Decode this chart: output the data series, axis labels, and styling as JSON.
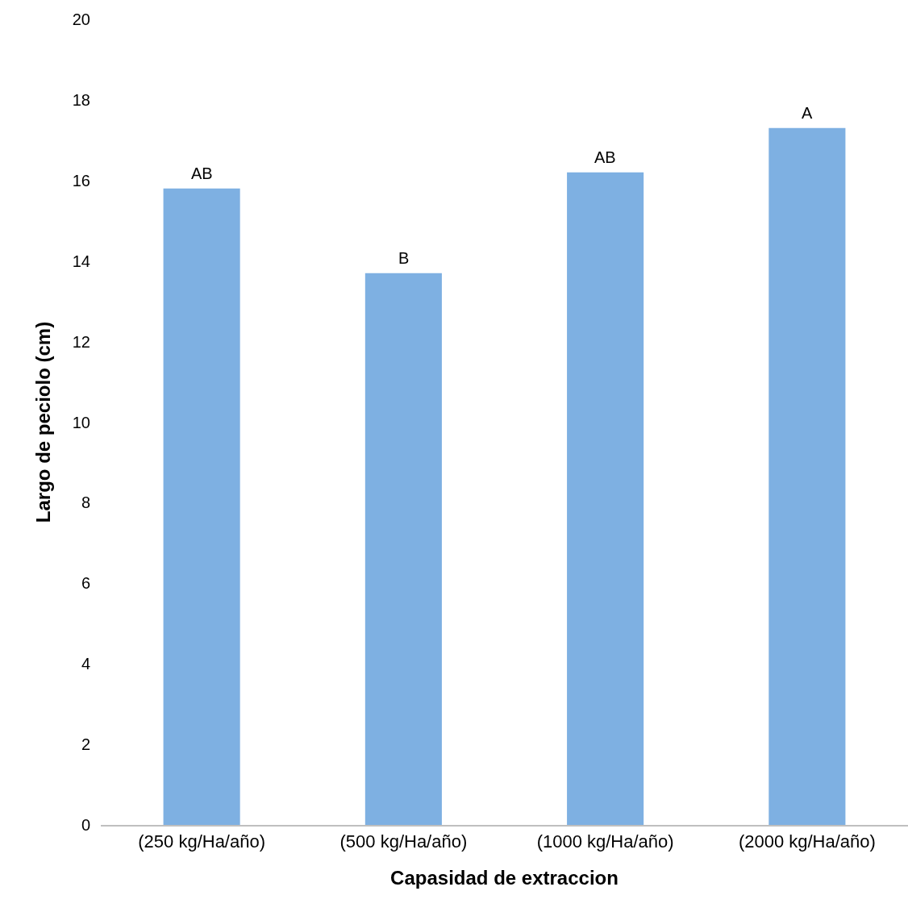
{
  "chart_data": {
    "type": "bar",
    "xlabel": "Capasidad de extraccion",
    "ylabel": "Largo de peciolo (cm)",
    "categories": [
      "(250 kg/Ha/año)",
      "(500 kg/Ha/año)",
      "(1000 kg/Ha/año)",
      "(2000 kg/Ha/año)"
    ],
    "values": [
      15.8,
      13.7,
      16.2,
      17.3
    ],
    "color": "#7eb0e2",
    "ylim": [
      0,
      20
    ],
    "yticks": [
      0,
      2,
      4,
      6,
      8,
      10,
      12,
      14,
      16,
      18,
      20
    ],
    "grid": false,
    "annotations": [
      {
        "text": "AB",
        "x": "(250 kg/Ha/año)",
        "y": 15.8
      },
      {
        "text": "B",
        "x": "(500 kg/Ha/año)",
        "y": 13.7
      },
      {
        "text": "AB",
        "x": "(1000 kg/Ha/año)",
        "y": 16.2
      },
      {
        "text": "A",
        "x": "(2000 kg/Ha/año)",
        "y": 17.3
      }
    ]
  }
}
